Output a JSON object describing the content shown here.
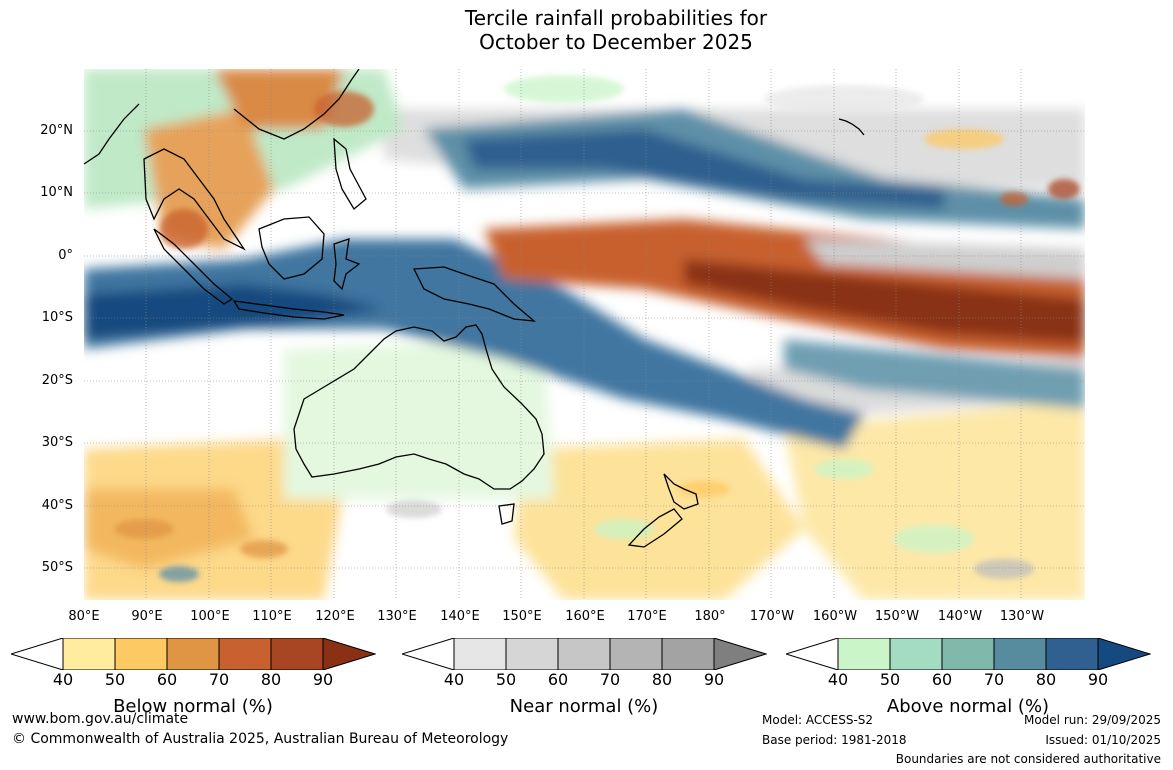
{
  "title": {
    "line1": "Tercile rainfall probabilities for",
    "line2": "October to December 2025"
  },
  "map": {
    "latitude_labels": [
      "20°N",
      "10°N",
      "0°",
      "10°S",
      "20°S",
      "30°S",
      "40°S",
      "50°S"
    ],
    "longitude_labels": [
      "80°E",
      "90°E",
      "100°E",
      "110°E",
      "120°E",
      "130°E",
      "140°E",
      "150°E",
      "160°E",
      "170°E",
      "180°",
      "170°W",
      "160°W",
      "150°W",
      "140°W",
      "130°W"
    ],
    "extent": {
      "lon_min": 80,
      "lon_max": 240,
      "lat_min": -55,
      "lat_max": 30
    }
  },
  "legends": [
    {
      "title": "Below normal (%)",
      "ticks": [
        "40",
        "50",
        "60",
        "70",
        "80",
        "90"
      ],
      "colors": [
        "#ffffff",
        "#ffec9e",
        "#fdc962",
        "#e09545",
        "#c8612f",
        "#a84522",
        "#8a3015"
      ]
    },
    {
      "title": "Near normal (%)",
      "ticks": [
        "40",
        "50",
        "60",
        "70",
        "80",
        "90"
      ],
      "colors": [
        "#ffffff",
        "#e6e6e6",
        "#d6d6d6",
        "#c6c6c6",
        "#b4b4b4",
        "#a3a3a3",
        "#7f7f7f"
      ]
    },
    {
      "title": "Above normal (%)",
      "ticks": [
        "40",
        "50",
        "60",
        "70",
        "80",
        "90"
      ],
      "colors": [
        "#ffffff",
        "#c9f5c8",
        "#a3dcc0",
        "#80b8ac",
        "#578c9e",
        "#30608f",
        "#144a7f"
      ]
    }
  ],
  "footer": {
    "url": "www.bom.gov.au/climate",
    "copyright": "© Commonwealth of Australia 2025, Australian Bureau of Meteorology",
    "model": "Model: ACCESS-S2",
    "base_period": "Base period: 1981-2018",
    "model_run": "Model run: 29/09/2025",
    "issued": "Issued: 01/10/2025",
    "disclaimer": "Boundaries are not considered authoritative"
  }
}
